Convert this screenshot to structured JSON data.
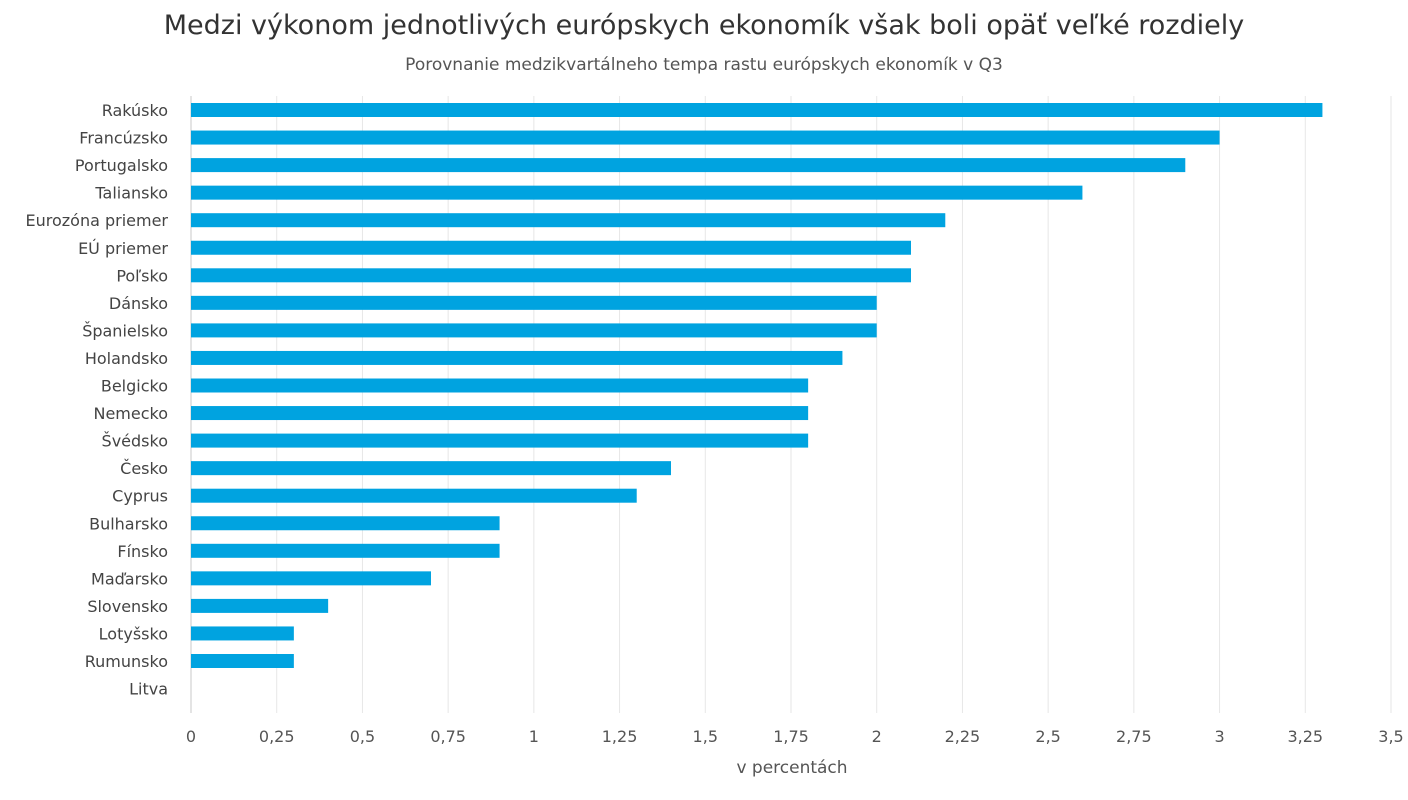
{
  "chart_data": {
    "type": "bar",
    "orientation": "horizontal",
    "title": "Medzi výkonom jednotlivých európskych ekonomík však boli opäť veľké rozdiely",
    "subtitle": "Porovnanie medzikvartálneho tempa rastu európskych ekonomík v Q3",
    "xlabel": "v percentách",
    "ylabel": "",
    "xlim": [
      0,
      3.5
    ],
    "x_ticks": [
      "0",
      "0,25",
      "0,5",
      "0,75",
      "1",
      "1,25",
      "1,5",
      "1,75",
      "2",
      "2,25",
      "2,5",
      "2,75",
      "3",
      "3,25",
      "3,5"
    ],
    "grid": true,
    "categories": [
      "Rakúsko",
      "Francúzsko",
      "Portugalsko",
      "Taliansko",
      "Eurozóna priemer",
      "EÚ priemer",
      "Poľsko",
      "Dánsko",
      "Španielsko",
      "Holandsko",
      "Belgicko",
      "Nemecko",
      "Švédsko",
      "Česko",
      "Cyprus",
      "Bulharsko",
      "Fínsko",
      "Maďarsko",
      "Slovensko",
      "Lotyšsko",
      "Rumunsko",
      "Litva"
    ],
    "values": [
      3.3,
      3.0,
      2.9,
      2.6,
      2.2,
      2.1,
      2.1,
      2.0,
      2.0,
      1.9,
      1.8,
      1.8,
      1.8,
      1.4,
      1.3,
      0.9,
      0.9,
      0.7,
      0.4,
      0.3,
      0.3,
      0.0
    ],
    "bar_color": "#00a3e0",
    "grid_color": "#e6e6e6"
  }
}
